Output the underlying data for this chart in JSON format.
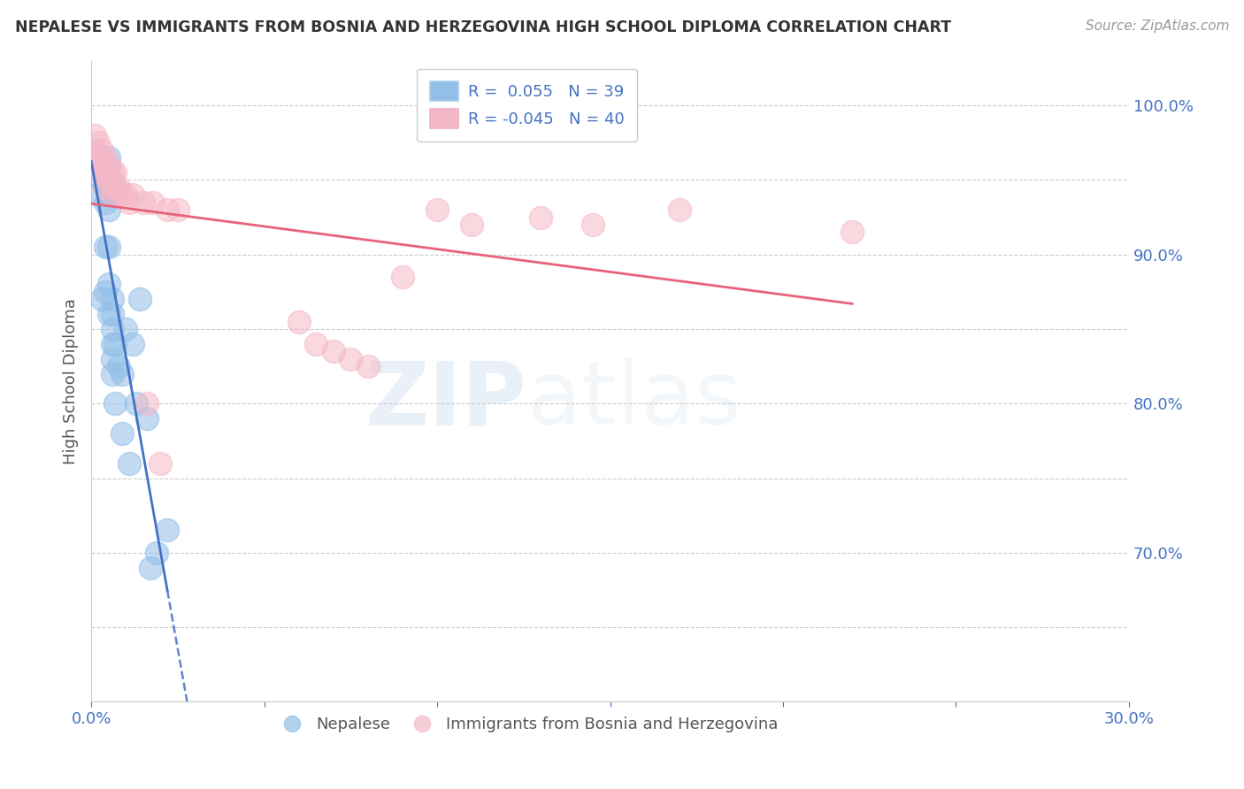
{
  "title": "NEPALESE VS IMMIGRANTS FROM BOSNIA AND HERZEGOVINA HIGH SCHOOL DIPLOMA CORRELATION CHART",
  "source": "Source: ZipAtlas.com",
  "ylabel": "High School Diploma",
  "xlim": [
    0.0,
    0.3
  ],
  "ylim": [
    0.6,
    1.03
  ],
  "blue_color": "#92bfe8",
  "pink_color": "#f5b8c8",
  "blue_line_color": "#4472c4",
  "pink_line_color": "#e8637a",
  "title_color": "#333333",
  "source_color": "#999999",
  "axis_label_color": "#555555",
  "tick_label_color": "#4472c4",
  "background_color": "#ffffff",
  "grid_color": "#cccccc",
  "nepalese_x": [
    0.001,
    0.002,
    0.003,
    0.003,
    0.003,
    0.003,
    0.004,
    0.004,
    0.004,
    0.004,
    0.004,
    0.005,
    0.005,
    0.005,
    0.005,
    0.005,
    0.005,
    0.005,
    0.005,
    0.006,
    0.006,
    0.006,
    0.006,
    0.006,
    0.006,
    0.007,
    0.007,
    0.008,
    0.009,
    0.009,
    0.01,
    0.011,
    0.012,
    0.013,
    0.014,
    0.016,
    0.017,
    0.019,
    0.022
  ],
  "nepalese_y": [
    0.97,
    0.94,
    0.965,
    0.955,
    0.95,
    0.87,
    0.96,
    0.945,
    0.935,
    0.905,
    0.875,
    0.965,
    0.96,
    0.95,
    0.94,
    0.93,
    0.905,
    0.88,
    0.86,
    0.87,
    0.86,
    0.85,
    0.84,
    0.83,
    0.82,
    0.84,
    0.8,
    0.825,
    0.82,
    0.78,
    0.85,
    0.76,
    0.84,
    0.8,
    0.87,
    0.79,
    0.69,
    0.7,
    0.715
  ],
  "bosnia_x": [
    0.001,
    0.001,
    0.002,
    0.002,
    0.003,
    0.003,
    0.003,
    0.004,
    0.004,
    0.004,
    0.005,
    0.005,
    0.006,
    0.006,
    0.006,
    0.007,
    0.007,
    0.008,
    0.009,
    0.01,
    0.011,
    0.012,
    0.015,
    0.016,
    0.018,
    0.02,
    0.022,
    0.025,
    0.06,
    0.065,
    0.07,
    0.075,
    0.08,
    0.09,
    0.1,
    0.11,
    0.13,
    0.145,
    0.17,
    0.22
  ],
  "bosnia_y": [
    0.98,
    0.965,
    0.975,
    0.965,
    0.97,
    0.96,
    0.955,
    0.965,
    0.955,
    0.945,
    0.96,
    0.95,
    0.955,
    0.95,
    0.94,
    0.955,
    0.945,
    0.945,
    0.94,
    0.94,
    0.935,
    0.94,
    0.935,
    0.8,
    0.935,
    0.76,
    0.93,
    0.93,
    0.855,
    0.84,
    0.835,
    0.83,
    0.825,
    0.885,
    0.93,
    0.92,
    0.925,
    0.92,
    0.93,
    0.915
  ]
}
